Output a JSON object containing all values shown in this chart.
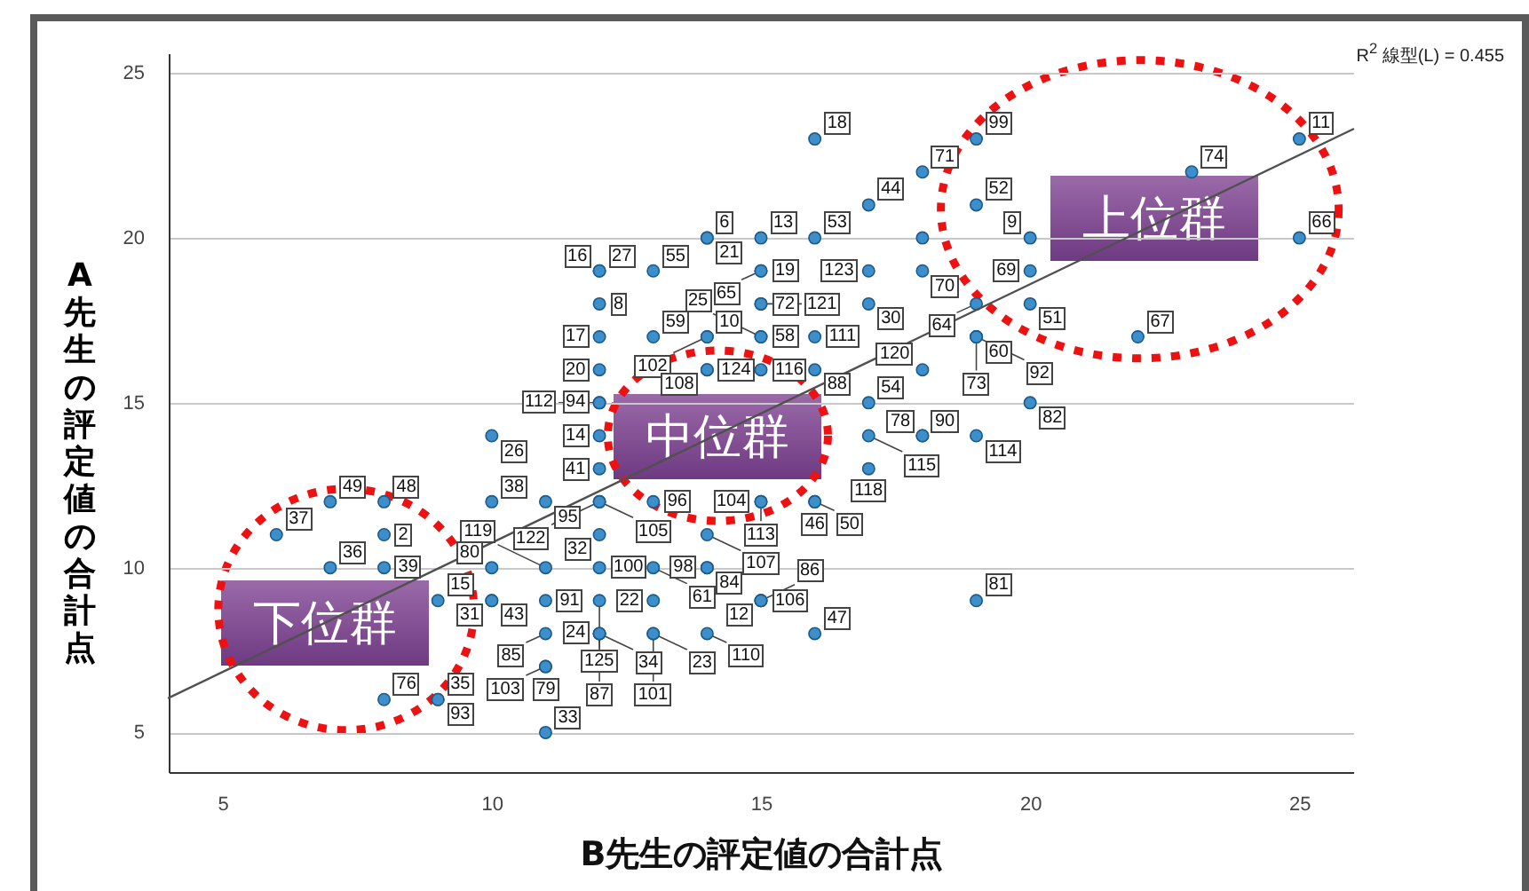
{
  "chart_data": {
    "type": "scatter",
    "xlabel": "B先生の評定値の合計点",
    "ylabel": "A先生の評定値の合計点",
    "xlim": [
      4,
      26
    ],
    "xticks": [
      5,
      10,
      15,
      20,
      25
    ],
    "ylim": [
      3.8,
      25.6
    ],
    "yticks": [
      5,
      10,
      15,
      20,
      25
    ],
    "grid": "y",
    "marker": "circle",
    "annotations": [
      "R$^{2}$ 線型(L) = 0.455",
      "上位群",
      "中位群",
      "下位群",
      {
        "text": "18",
        "x": 16,
        "y": 23
      },
      {
        "text": "99",
        "x": 19,
        "y": 23
      },
      {
        "text": "11",
        "x": 25,
        "y": 23
      },
      {
        "text": "71",
        "x": 18,
        "y": 22
      },
      {
        "text": "74",
        "x": 23,
        "y": 22
      },
      {
        "text": "44",
        "x": 17,
        "y": 21
      },
      {
        "text": "52",
        "x": 19,
        "y": 21
      },
      {
        "text": "6",
        "x": 14,
        "y": 20
      },
      {
        "text": "21",
        "x": 14,
        "y": 20
      },
      {
        "text": "13",
        "x": 15,
        "y": 20
      },
      {
        "text": "53",
        "x": 16,
        "y": 20
      },
      {
        "text": "9",
        "x": 20,
        "y": 20
      },
      {
        "text": "66",
        "x": 25,
        "y": 20
      },
      {
        "text": "55",
        "x": 13,
        "y": 19
      },
      {
        "text": "27",
        "x": 12,
        "y": 19
      },
      {
        "text": "16",
        "x": 12,
        "y": 19
      },
      {
        "text": "19",
        "x": 15,
        "y": 19
      },
      {
        "text": "65",
        "x": 15,
        "y": 19
      },
      {
        "text": "123",
        "x": 17,
        "y": 19
      },
      {
        "text": "70",
        "x": 18,
        "y": 19
      },
      {
        "text": "69",
        "x": 20,
        "y": 19
      },
      {
        "text": "8",
        "x": 12,
        "y": 18
      },
      {
        "text": "72",
        "x": 15,
        "y": 18
      },
      {
        "text": "121",
        "x": 15,
        "y": 18
      },
      {
        "text": "30",
        "x": 17,
        "y": 18
      },
      {
        "text": "64",
        "x": 19,
        "y": 18
      },
      {
        "text": "51",
        "x": 20,
        "y": 18
      },
      {
        "text": "59",
        "x": 13,
        "y": 17
      },
      {
        "text": "10",
        "x": 14,
        "y": 17
      },
      {
        "text": "102",
        "x": 14,
        "y": 17
      },
      {
        "text": "17",
        "x": 12,
        "y": 17
      },
      {
        "text": "58",
        "x": 15,
        "y": 17
      },
      {
        "text": "25",
        "x": 15,
        "y": 17
      },
      {
        "text": "111",
        "x": 16,
        "y": 17
      },
      {
        "text": "60",
        "x": 19,
        "y": 17
      },
      {
        "text": "73",
        "x": 19,
        "y": 17
      },
      {
        "text": "92",
        "x": 19,
        "y": 17
      },
      {
        "text": "67",
        "x": 22,
        "y": 17
      },
      {
        "text": "20",
        "x": 12,
        "y": 16
      },
      {
        "text": "124",
        "x": 14,
        "y": 16
      },
      {
        "text": "108",
        "x": 14,
        "y": 16
      },
      {
        "text": "116",
        "x": 15,
        "y": 16
      },
      {
        "text": "88",
        "x": 16,
        "y": 16
      },
      {
        "text": "120",
        "x": 18,
        "y": 16
      },
      {
        "text": "94",
        "x": 12,
        "y": 15
      },
      {
        "text": "112",
        "x": 12,
        "y": 15
      },
      {
        "text": "54",
        "x": 17,
        "y": 15
      },
      {
        "text": "82",
        "x": 20,
        "y": 15
      },
      {
        "text": "26",
        "x": 10,
        "y": 14
      },
      {
        "text": "14",
        "x": 12,
        "y": 14
      },
      {
        "text": "115",
        "x": 17,
        "y": 14
      },
      {
        "text": "90",
        "x": 18,
        "y": 14
      },
      {
        "text": "78",
        "x": 18,
        "y": 14
      },
      {
        "text": "114",
        "x": 19,
        "y": 14
      },
      {
        "text": "41",
        "x": 12,
        "y": 13
      },
      {
        "text": "118",
        "x": 17,
        "y": 13
      },
      {
        "text": "49",
        "x": 7,
        "y": 12
      },
      {
        "text": "48",
        "x": 8,
        "y": 12
      },
      {
        "text": "38",
        "x": 10,
        "y": 12
      },
      {
        "text": "95",
        "x": 11,
        "y": 12
      },
      {
        "text": "105",
        "x": 12,
        "y": 12
      },
      {
        "text": "122",
        "x": 12,
        "y": 12
      },
      {
        "text": "96",
        "x": 13,
        "y": 12
      },
      {
        "text": "104",
        "x": 15,
        "y": 12
      },
      {
        "text": "113",
        "x": 15,
        "y": 12
      },
      {
        "text": "46",
        "x": 16,
        "y": 12
      },
      {
        "text": "50",
        "x": 16,
        "y": 12
      },
      {
        "text": "37",
        "x": 6,
        "y": 11
      },
      {
        "text": "2",
        "x": 8,
        "y": 11
      },
      {
        "text": "32",
        "x": 12,
        "y": 11
      },
      {
        "text": "107",
        "x": 14,
        "y": 11
      },
      {
        "text": "36",
        "x": 7,
        "y": 10
      },
      {
        "text": "39",
        "x": 8,
        "y": 10
      },
      {
        "text": "80",
        "x": 10,
        "y": 10
      },
      {
        "text": "119",
        "x": 11,
        "y": 10
      },
      {
        "text": "100",
        "x": 12,
        "y": 10
      },
      {
        "text": "61",
        "x": 13,
        "y": 10
      },
      {
        "text": "98",
        "x": 14,
        "y": 10
      },
      {
        "text": "84",
        "x": 14,
        "y": 10
      },
      {
        "text": "15",
        "x": 9,
        "y": 9
      },
      {
        "text": "43",
        "x": 10,
        "y": 9
      },
      {
        "text": "31",
        "x": 10,
        "y": 9
      },
      {
        "text": "91",
        "x": 11,
        "y": 9
      },
      {
        "text": "125",
        "x": 12,
        "y": 9
      },
      {
        "text": "22",
        "x": 13,
        "y": 9
      },
      {
        "text": "106",
        "x": 15,
        "y": 9
      },
      {
        "text": "12",
        "x": 15,
        "y": 9
      },
      {
        "text": "86",
        "x": 15,
        "y": 9
      },
      {
        "text": "81",
        "x": 19,
        "y": 9
      },
      {
        "text": "85",
        "x": 11,
        "y": 8
      },
      {
        "text": "34",
        "x": 12,
        "y": 8
      },
      {
        "text": "87",
        "x": 12,
        "y": 8
      },
      {
        "text": "24",
        "x": 12,
        "y": 8
      },
      {
        "text": "101",
        "x": 13,
        "y": 8
      },
      {
        "text": "23",
        "x": 13,
        "y": 8
      },
      {
        "text": "110",
        "x": 14,
        "y": 8
      },
      {
        "text": "47",
        "x": 16,
        "y": 8
      },
      {
        "text": "79",
        "x": 11,
        "y": 7
      },
      {
        "text": "103",
        "x": 11,
        "y": 7
      },
      {
        "text": "35",
        "x": 9,
        "y": 6
      },
      {
        "text": "93",
        "x": 9,
        "y": 6
      },
      {
        "text": "76",
        "x": 8,
        "y": 6
      },
      {
        "text": "33",
        "x": 11,
        "y": 5
      }
    ],
    "series": [
      {
        "color": "#3d8fcc",
        "x": [
          16,
          19,
          25,
          18,
          23,
          17,
          19,
          14,
          14,
          15,
          16,
          18,
          20,
          25,
          13,
          12,
          12,
          15,
          15,
          17,
          18,
          20,
          12,
          15,
          15,
          17,
          19,
          20,
          13,
          14,
          14,
          12,
          15,
          15,
          16,
          19,
          19,
          19,
          22,
          12,
          14,
          14,
          15,
          16,
          18,
          12,
          12,
          17,
          20,
          10,
          12,
          17,
          18,
          18,
          19,
          12,
          17,
          7,
          8,
          10,
          11,
          12,
          12,
          13,
          15,
          15,
          16,
          16,
          6,
          8,
          12,
          14,
          7,
          8,
          10,
          11,
          12,
          13,
          14,
          14,
          9,
          10,
          10,
          11,
          12,
          13,
          15,
          15,
          15,
          19,
          11,
          12,
          12,
          12,
          13,
          13,
          14,
          16,
          11,
          11,
          9,
          9,
          8,
          11
        ],
        "values": [
          23,
          23,
          23,
          22,
          22,
          21,
          21,
          20,
          20,
          20,
          20,
          20,
          20,
          20,
          19,
          19,
          19,
          19,
          19,
          19,
          19,
          19,
          18,
          18,
          18,
          18,
          18,
          18,
          17,
          17,
          17,
          17,
          17,
          17,
          17,
          17,
          17,
          17,
          17,
          16,
          16,
          16,
          16,
          16,
          16,
          15,
          15,
          15,
          15,
          14,
          14,
          14,
          14,
          14,
          14,
          13,
          13,
          12,
          12,
          12,
          12,
          12,
          12,
          12,
          12,
          12,
          12,
          12,
          11,
          11,
          11,
          11,
          10,
          10,
          10,
          10,
          10,
          10,
          10,
          10,
          9,
          9,
          9,
          9,
          9,
          9,
          9,
          9,
          9,
          9,
          8,
          8,
          8,
          8,
          8,
          8,
          8,
          8,
          7,
          7,
          6,
          6,
          6,
          5
        ]
      },
      {
        "type": "line",
        "marker": "none",
        "color": "#505050",
        "x": [
          4,
          26
        ],
        "values": [
          6.05,
          23.3
        ]
      }
    ]
  }
}
